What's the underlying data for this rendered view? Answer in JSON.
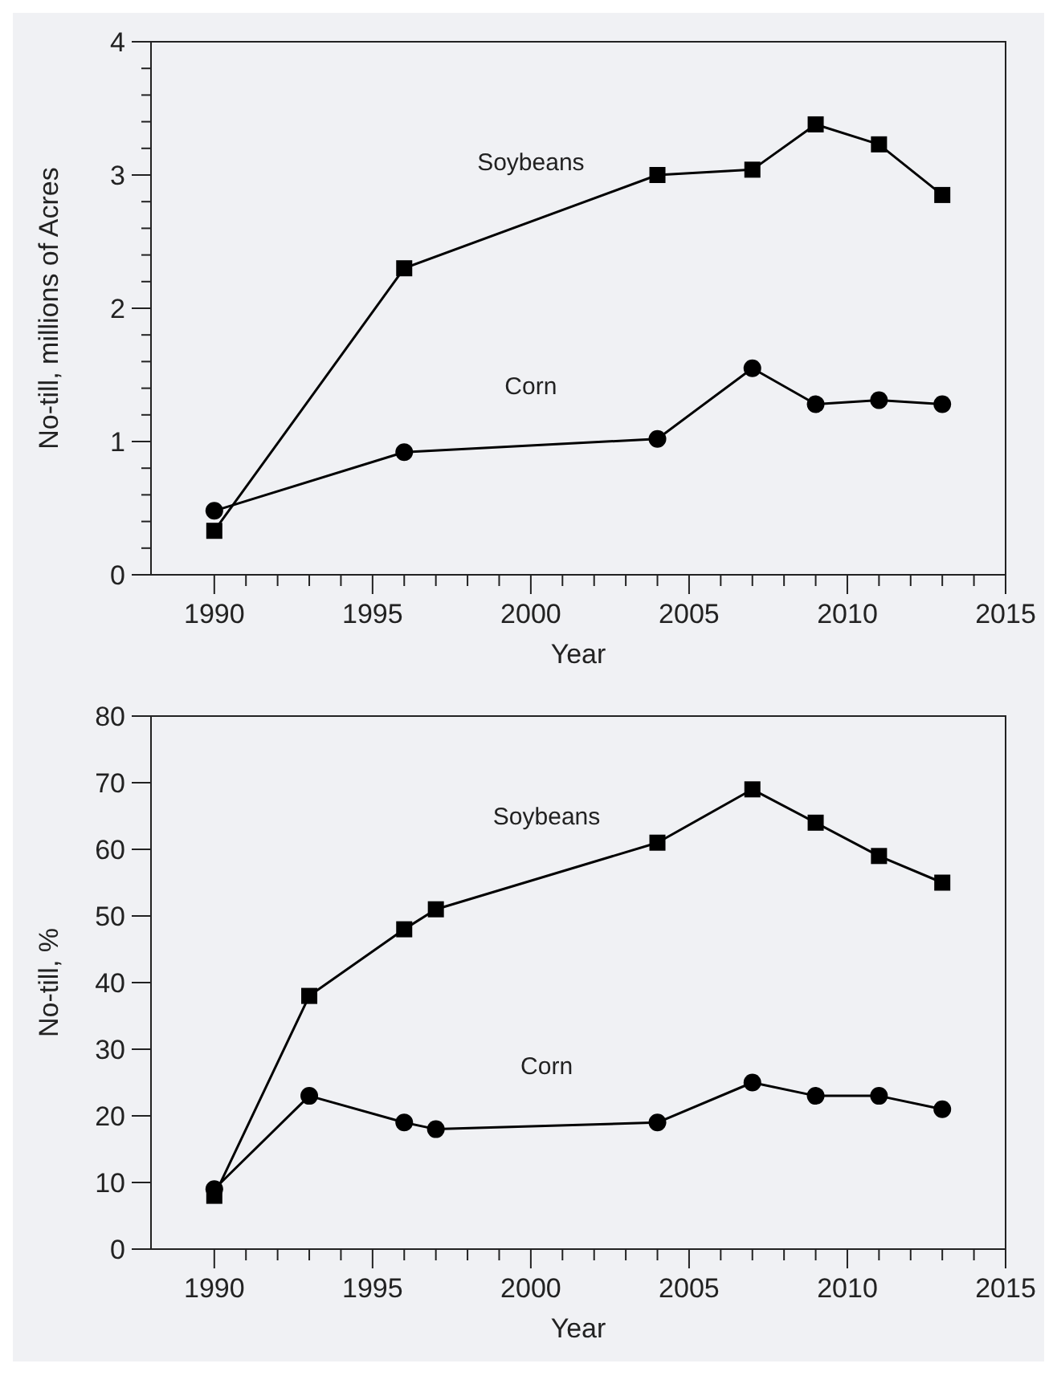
{
  "chart_data": [
    {
      "type": "line",
      "xlabel": "Year",
      "ylabel": "No-till, millions of Acres",
      "xlim": [
        1988,
        2015
      ],
      "xticks": [
        1990,
        {
          "value": 1991,
          "label": null
        },
        {
          "value": 1992,
          "label": null
        },
        {
          "value": 1993,
          "label": null
        },
        {
          "value": 1994,
          "label": null
        },
        1995,
        {
          "value": 1996,
          "label": null
        },
        {
          "value": 1997,
          "label": null
        },
        {
          "value": 1998,
          "label": null
        },
        {
          "value": 1999,
          "label": null
        },
        2000,
        {
          "value": 2001,
          "label": null
        },
        {
          "value": 2002,
          "label": null
        },
        {
          "value": 2003,
          "label": null
        },
        {
          "value": 2004,
          "label": null
        },
        2005,
        {
          "value": 2006,
          "label": null
        },
        {
          "value": 2007,
          "label": null
        },
        {
          "value": 2008,
          "label": null
        },
        {
          "value": 2009,
          "label": null
        },
        2010,
        {
          "value": 2011,
          "label": null
        },
        {
          "value": 2012,
          "label": null
        },
        {
          "value": 2013,
          "label": null
        },
        {
          "value": 2014,
          "label": null
        },
        2015
      ],
      "ylim": [
        0,
        4
      ],
      "yticks": [
        0,
        {
          "value": 0.2,
          "label": null
        },
        {
          "value": 0.4,
          "label": null
        },
        {
          "value": 0.6,
          "label": null
        },
        {
          "value": 0.8,
          "label": null
        },
        1,
        {
          "value": 1.2,
          "label": null
        },
        {
          "value": 1.4,
          "label": null
        },
        {
          "value": 1.6,
          "label": null
        },
        {
          "value": 1.8,
          "label": null
        },
        2,
        {
          "value": 2.2,
          "label": null
        },
        {
          "value": 2.4,
          "label": null
        },
        {
          "value": 2.6,
          "label": null
        },
        {
          "value": 2.8,
          "label": null
        },
        3,
        {
          "value": 3.2,
          "label": null
        },
        {
          "value": 3.4,
          "label": null
        },
        {
          "value": 3.6,
          "label": null
        },
        {
          "value": 3.8,
          "label": null
        },
        4
      ],
      "line_style": "solid",
      "series": [
        {
          "name": "Soybeans",
          "color": "#000000",
          "marker": "square",
          "x": [
            1990,
            1996,
            2004,
            2007,
            2009,
            2011,
            2013
          ],
          "values": [
            0.33,
            2.3,
            3.0,
            3.04,
            3.38,
            3.23,
            2.85
          ]
        },
        {
          "name": "Corn",
          "color": "#000000",
          "marker": "circle",
          "x": [
            1990,
            1996,
            2004,
            2007,
            2009,
            2011,
            2013
          ],
          "values": [
            0.48,
            0.92,
            1.02,
            1.55,
            1.28,
            1.31,
            1.28
          ]
        }
      ]
    },
    {
      "type": "line",
      "xlabel": "Year",
      "ylabel": "No-till, %",
      "xlim": [
        1988,
        2015
      ],
      "xticks": [
        1990,
        {
          "value": 1991,
          "label": null
        },
        {
          "value": 1992,
          "label": null
        },
        {
          "value": 1993,
          "label": null
        },
        {
          "value": 1994,
          "label": null
        },
        1995,
        {
          "value": 1996,
          "label": null
        },
        {
          "value": 1997,
          "label": null
        },
        {
          "value": 1998,
          "label": null
        },
        {
          "value": 1999,
          "label": null
        },
        2000,
        {
          "value": 2001,
          "label": null
        },
        {
          "value": 2002,
          "label": null
        },
        {
          "value": 2003,
          "label": null
        },
        {
          "value": 2004,
          "label": null
        },
        2005,
        {
          "value": 2006,
          "label": null
        },
        {
          "value": 2007,
          "label": null
        },
        {
          "value": 2008,
          "label": null
        },
        {
          "value": 2009,
          "label": null
        },
        2010,
        {
          "value": 2011,
          "label": null
        },
        {
          "value": 2012,
          "label": null
        },
        {
          "value": 2013,
          "label": null
        },
        {
          "value": 2014,
          "label": null
        },
        2015
      ],
      "ylim": [
        0,
        80
      ],
      "yticks": [
        0,
        10,
        20,
        30,
        40,
        50,
        60,
        70,
        80
      ],
      "line_style": "solid",
      "series": [
        {
          "name": "Soybeans",
          "color": "#000000",
          "marker": "square",
          "x": [
            1990,
            1993,
            1996,
            1997,
            2004,
            2007,
            2009,
            2011,
            2013
          ],
          "values": [
            8,
            38,
            48,
            51,
            61,
            69,
            64,
            59,
            55
          ]
        },
        {
          "name": "Corn",
          "color": "#000000",
          "marker": "circle",
          "x": [
            1990,
            1993,
            1996,
            1997,
            2004,
            2007,
            2009,
            2011,
            2013
          ],
          "values": [
            9,
            23,
            19,
            18,
            19,
            25,
            23,
            23,
            21
          ]
        }
      ]
    }
  ]
}
